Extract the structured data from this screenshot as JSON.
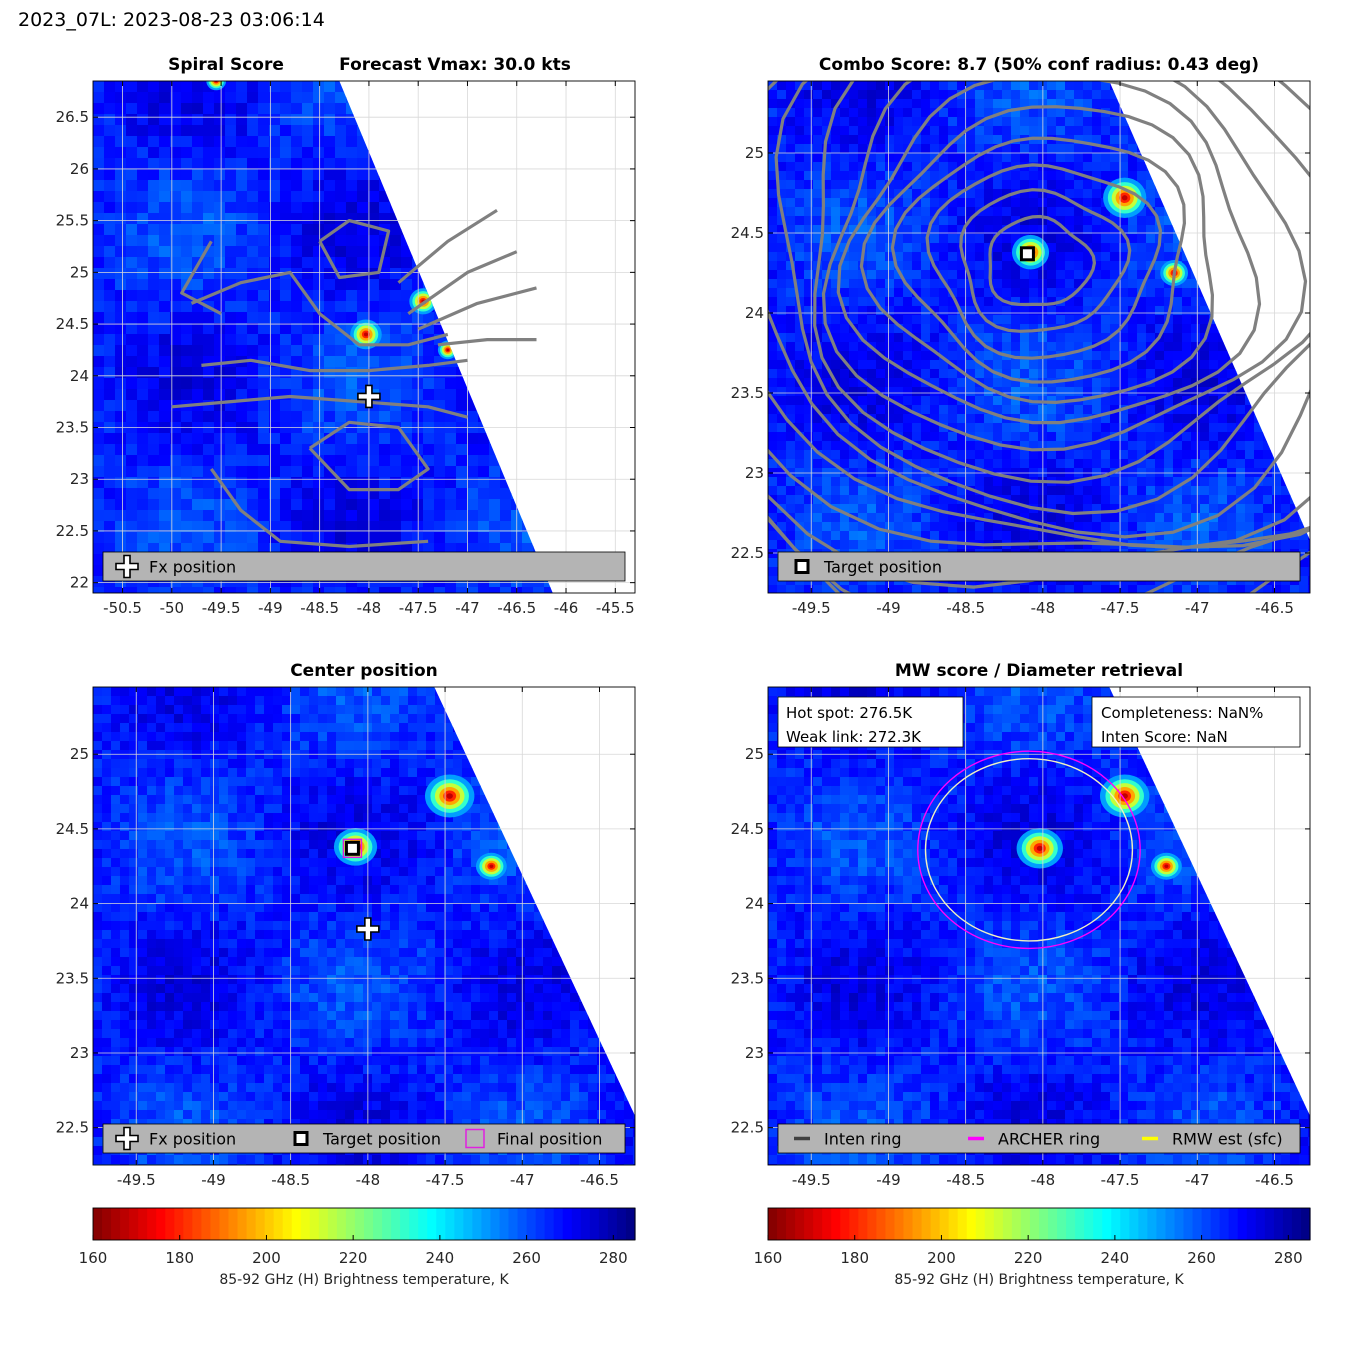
{
  "suptitle": "2023_07L: 2023-08-23 03:06:14",
  "colors": {
    "contour": "#808080",
    "target_marker": "#000000",
    "final_marker": "#e020e0",
    "archer_ring": "#ff00ff",
    "rmw_ring": "#ffff00",
    "inten_ring": "#404040",
    "legend_bg": "#b4b4b4"
  },
  "chart_data": [
    {
      "id": "spiral",
      "type": "heatmap",
      "title_left": "Spiral Score",
      "title_right": "Forecast Vmax: 30.0 kts",
      "xlim": [
        -50.8,
        -45.3
      ],
      "ylim": [
        21.9,
        26.85
      ],
      "xticks": [
        -50.5,
        -50,
        -49.5,
        -49,
        -48.5,
        -48,
        -47.5,
        -47,
        -46.5,
        -46,
        -45.5
      ],
      "xtick_labels": [
        "-50.5",
        "-50",
        "-49.5",
        "-49",
        "-48.5",
        "-48",
        "-47.5",
        "-47",
        "-46.5",
        "-46",
        "-45.5"
      ],
      "yticks": [
        22,
        22.5,
        23,
        23.5,
        24,
        24.5,
        25,
        25.5,
        26,
        26.5
      ],
      "ytick_labels": [
        "22",
        "22.5",
        "23",
        "23.5",
        "24",
        "24.5",
        "25",
        "25.5",
        "26",
        "26.5"
      ],
      "grid": true,
      "swath_edge": [
        [
          -48.3,
          26.85
        ],
        [
          -46.2,
          22.05
        ]
      ],
      "hot_spots": [
        {
          "lon": -48.03,
          "lat": 24.4,
          "r": 0.16
        },
        {
          "lon": -47.45,
          "lat": 24.72,
          "r": 0.14
        },
        {
          "lon": -47.2,
          "lat": 24.25,
          "r": 0.1
        },
        {
          "lon": -49.55,
          "lat": 26.85,
          "r": 0.1
        }
      ],
      "markers": [
        {
          "kind": "fx",
          "lon": -48.0,
          "lat": 23.8
        }
      ],
      "contour_style": "spiral",
      "legend": [
        {
          "kind": "fx",
          "label": "Fx position"
        }
      ],
      "legend_position": "bottom"
    },
    {
      "id": "combo",
      "type": "heatmap",
      "title": "Combo Score: 8.7  (50% conf radius: 0.43 deg)",
      "xlim": [
        -49.78,
        -46.27
      ],
      "ylim": [
        22.25,
        25.45
      ],
      "xticks": [
        -49.5,
        -49,
        -48.5,
        -48,
        -47.5,
        -47,
        -46.5
      ],
      "xtick_labels": [
        "-49.5",
        "-49",
        "-48.5",
        "-48",
        "-47.5",
        "-47",
        "-46.5"
      ],
      "yticks": [
        22.5,
        23,
        23.5,
        24,
        24.5,
        25
      ],
      "ytick_labels": [
        "22.5",
        "23",
        "23.5",
        "24",
        "24.5",
        "25"
      ],
      "grid": true,
      "swath_edge": [
        [
          -47.57,
          25.45
        ],
        [
          -46.27,
          22.58
        ]
      ],
      "hot_spots": [
        {
          "lon": -48.08,
          "lat": 24.38,
          "r": 0.12
        },
        {
          "lon": -47.47,
          "lat": 24.72,
          "r": 0.14
        },
        {
          "lon": -47.15,
          "lat": 24.25,
          "r": 0.09
        }
      ],
      "markers": [
        {
          "kind": "target",
          "lon": -48.1,
          "lat": 24.37
        }
      ],
      "contour_style": "rings",
      "contour_center": {
        "lon": -48.05,
        "lat": 24.3
      },
      "legend": [
        {
          "kind": "target",
          "label": "Target position"
        }
      ],
      "legend_position": "bottom"
    },
    {
      "id": "center",
      "type": "heatmap",
      "title": "Center position",
      "xlim": [
        -49.78,
        -46.27
      ],
      "ylim": [
        22.25,
        25.45
      ],
      "xticks": [
        -49.5,
        -49,
        -48.5,
        -48,
        -47.5,
        -47,
        -46.5
      ],
      "xtick_labels": [
        "-49.5",
        "-49",
        "-48.5",
        "-48",
        "-47.5",
        "-47",
        "-46.5"
      ],
      "yticks": [
        22.5,
        23,
        23.5,
        24,
        24.5,
        25
      ],
      "ytick_labels": [
        "22.5",
        "23",
        "23.5",
        "24",
        "24.5",
        "25"
      ],
      "grid": true,
      "swath_edge": [
        [
          -47.57,
          25.45
        ],
        [
          -46.27,
          22.58
        ]
      ],
      "hot_spots": [
        {
          "lon": -48.08,
          "lat": 24.38,
          "r": 0.14
        },
        {
          "lon": -47.47,
          "lat": 24.72,
          "r": 0.16
        },
        {
          "lon": -47.2,
          "lat": 24.25,
          "r": 0.1
        }
      ],
      "markers": [
        {
          "kind": "fx",
          "lon": -48.0,
          "lat": 23.83
        },
        {
          "kind": "final",
          "lon": -48.1,
          "lat": 24.37
        },
        {
          "kind": "target",
          "lon": -48.1,
          "lat": 24.37
        }
      ],
      "legend": [
        {
          "kind": "fx",
          "label": "Fx position"
        },
        {
          "kind": "target",
          "label": "Target position"
        },
        {
          "kind": "final",
          "label": "Final position"
        }
      ],
      "legend_position": "bottom"
    },
    {
      "id": "mw",
      "type": "heatmap",
      "title": "MW score / Diameter retrieval",
      "xlim": [
        -49.78,
        -46.27
      ],
      "ylim": [
        22.25,
        25.45
      ],
      "xticks": [
        -49.5,
        -49,
        -48.5,
        -48,
        -47.5,
        -47,
        -46.5
      ],
      "xtick_labels": [
        "-49.5",
        "-49",
        "-48.5",
        "-48",
        "-47.5",
        "-47",
        "-46.5"
      ],
      "yticks": [
        22.5,
        23,
        23.5,
        24,
        24.5,
        25
      ],
      "ytick_labels": [
        "22.5",
        "23",
        "23.5",
        "24",
        "24.5",
        "25"
      ],
      "grid": true,
      "swath_edge": [
        [
          -47.57,
          25.45
        ],
        [
          -46.27,
          22.58
        ]
      ],
      "hot_spots": [
        {
          "lon": -48.02,
          "lat": 24.37,
          "r": 0.15
        },
        {
          "lon": -47.47,
          "lat": 24.72,
          "r": 0.16
        },
        {
          "lon": -47.2,
          "lat": 24.25,
          "r": 0.1
        }
      ],
      "rings": [
        {
          "kind": "archer",
          "lon": -48.09,
          "lat": 24.36,
          "rx_deg": 0.72,
          "ry_deg": 0.66
        },
        {
          "kind": "rmw",
          "lon": -48.09,
          "lat": 24.36,
          "rx_deg": 0.67,
          "ry_deg": 0.61
        }
      ],
      "info_left": [
        "Hot spot: 276.5K",
        "Weak link: 272.3K"
      ],
      "info_right": [
        "Completeness: NaN%",
        "Inten Score: NaN"
      ],
      "legend": [
        {
          "kind": "inten",
          "label": "Inten ring"
        },
        {
          "kind": "archer",
          "label": "ARCHER ring"
        },
        {
          "kind": "rmw",
          "label": "RMW est (sfc)"
        }
      ],
      "legend_position": "bottom"
    }
  ],
  "colorbar": {
    "ticks": [
      160,
      180,
      200,
      220,
      240,
      260,
      280
    ],
    "tick_labels": [
      "160",
      "180",
      "200",
      "220",
      "240",
      "260",
      "280"
    ],
    "range": [
      160,
      285
    ],
    "label": "85-92 GHz (H) Brightness temperature, K",
    "colormap": "jet_reversed"
  }
}
